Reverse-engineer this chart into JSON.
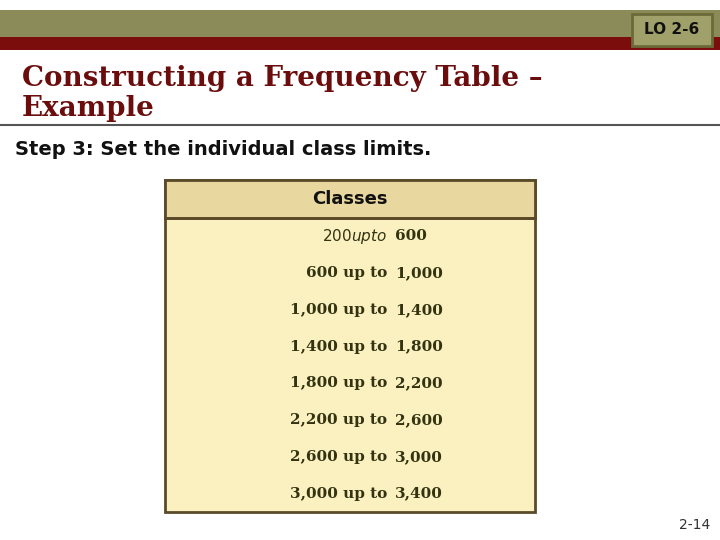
{
  "title_line1": "Constructing a Frequency Table –",
  "title_line2": "Example",
  "title_color": "#6B0D0D",
  "lo_label": "LO 2-6",
  "lo_bg_color": "#A0A06A",
  "lo_border_color": "#6B6B3A",
  "step_text": "Step 3: Set the individual class limits.",
  "header_bg": "#E8D8A0",
  "table_bg": "#FAF0C0",
  "table_border_color": "#5A4A2A",
  "table_header": "Classes",
  "table_rows": [
    [
      "$  200 up to $",
      "600"
    ],
    [
      "600 up to",
      "1,000"
    ],
    [
      "1,000 up to",
      "1,400"
    ],
    [
      "1,400 up to",
      "1,800"
    ],
    [
      "1,800 up to",
      "2,200"
    ],
    [
      "2,200 up to",
      "2,600"
    ],
    [
      "2,600 up to",
      "3,000"
    ],
    [
      "3,000 up to",
      "3,400"
    ]
  ],
  "slide_bg": "#FFFFFF",
  "header_bar_color1": "#8B8B5A",
  "header_bar_color2": "#7B0D0D",
  "page_number": "2-14",
  "footer_text_color": "#333333"
}
